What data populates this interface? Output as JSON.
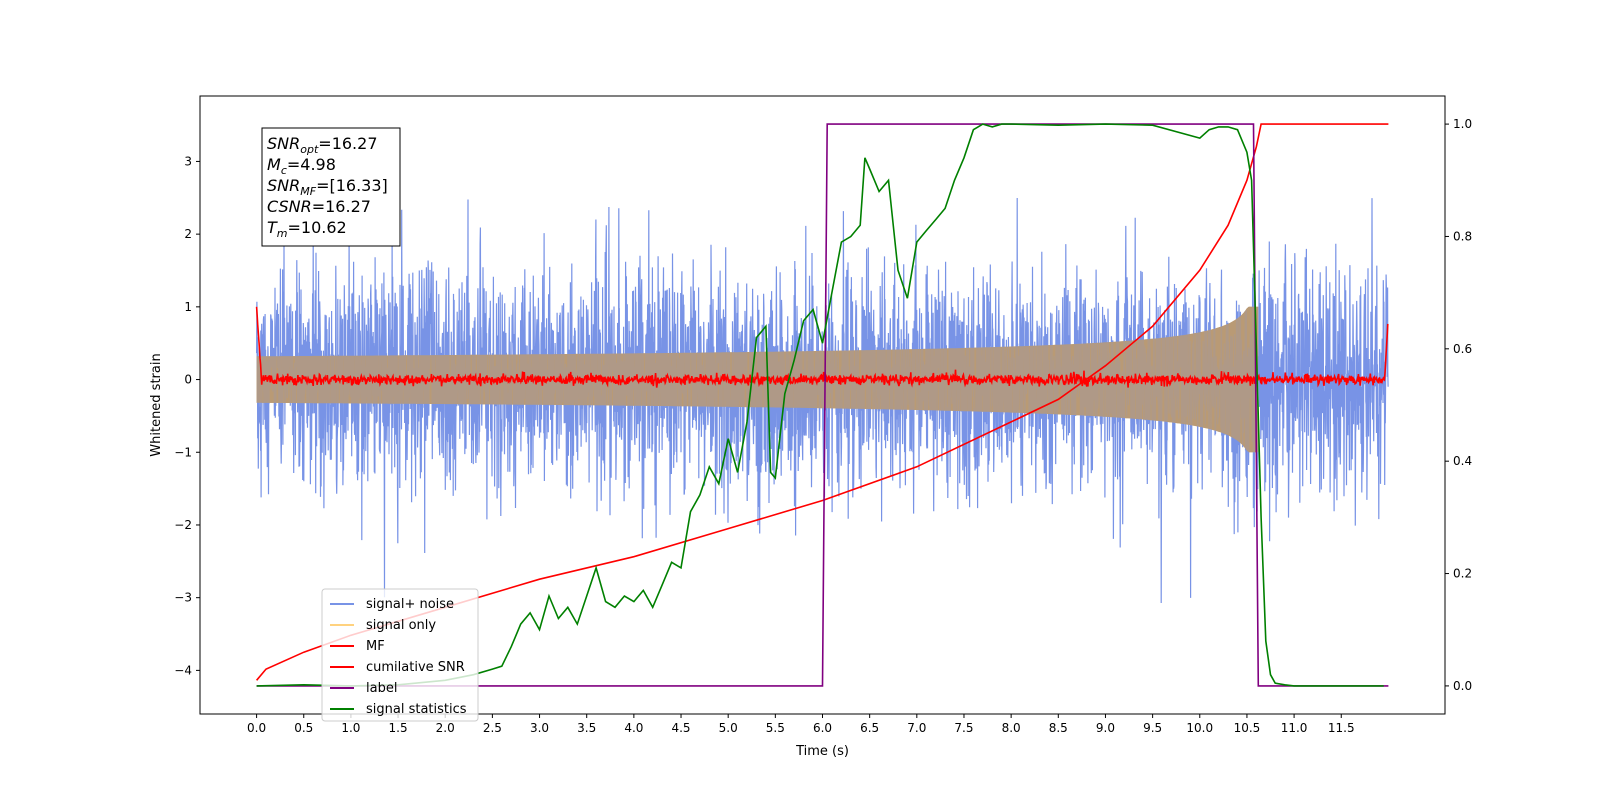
{
  "chart_data": {
    "type": "line",
    "xlabel": "Time (s)",
    "ylabel_left": "Whitened strain",
    "ylabel_right": "",
    "xlim": [
      -0.6,
      12.6
    ],
    "ylim_left": [
      -4.6,
      3.9
    ],
    "ylim_right": [
      -0.05,
      1.05
    ],
    "x_ticks": [
      0.0,
      0.5,
      1.0,
      1.5,
      2.0,
      2.5,
      3.0,
      3.5,
      4.0,
      4.5,
      5.0,
      5.5,
      6.0,
      6.5,
      7.0,
      7.5,
      8.0,
      8.5,
      9.0,
      9.5,
      10.0,
      10.5,
      11.0,
      11.5
    ],
    "x_tick_labels": [
      "0.0",
      "0.5",
      "1.0",
      "1.5",
      "2.0",
      "2.5",
      "3.0",
      "3.5",
      "4.0",
      "4.5",
      "5.0",
      "5.5",
      "6.0",
      "6.5",
      "7.0",
      "7.5",
      "8.0",
      "8.5",
      "9.0",
      "9.5",
      "10.0",
      "10.5",
      "11.0",
      "11.5"
    ],
    "y_ticks_left": [
      -4,
      -3,
      -2,
      -1,
      0,
      1,
      2,
      3
    ],
    "y_tick_labels_left": [
      "−4",
      "−3",
      "−2",
      "−1",
      "0",
      "1",
      "2",
      "3"
    ],
    "y_ticks_right": [
      0.0,
      0.2,
      0.4,
      0.6,
      0.8,
      1.0
    ],
    "y_tick_labels_right": [
      "0.0",
      "0.2",
      "0.4",
      "0.6",
      "0.8",
      "1.0"
    ],
    "grid": false,
    "legend_position": "bottom-left",
    "annotation": {
      "lines": [
        {
          "base": "SNR",
          "sub": "opt",
          "value": "=16.27"
        },
        {
          "base": "M",
          "sub": "c",
          "value": "=4.98"
        },
        {
          "base": "SNR",
          "sub": "MF",
          "value": "=[16.33]"
        },
        {
          "base": "CSNR",
          "sub": "",
          "value": "=16.27"
        },
        {
          "base": "T",
          "sub": "m",
          "value": "=10.62"
        }
      ]
    },
    "series": [
      {
        "name": "signal+ noise",
        "color": "#7893e6",
        "axis": "left",
        "kind": "noise",
        "t_start": 0.0,
        "t_end": 12.0,
        "typical_amplitude": 0.75,
        "peak_amplitude": 3.5
      },
      {
        "name": "signal only",
        "color": "#ffd27f",
        "axis": "left",
        "kind": "chirp",
        "t_start": 0.0,
        "t_end": 10.62,
        "amplitude_start": 0.03,
        "amplitude_end": 1.0
      },
      {
        "name": "MF",
        "color": "#ff0000",
        "axis": "left",
        "kind": "mf",
        "t_start": 0.0,
        "t_end": 12.0,
        "start_value": 1.0,
        "end_value": 0.9,
        "noise_amplitude": 0.06
      },
      {
        "name": "cumilative SNR",
        "color": "#ff0000",
        "axis": "right",
        "x": [
          0.0,
          0.1,
          0.5,
          1.0,
          2.0,
          3.0,
          4.0,
          5.0,
          6.0,
          7.0,
          8.0,
          8.5,
          9.0,
          9.5,
          10.0,
          10.3,
          10.5,
          10.6,
          10.65,
          12.0
        ],
        "values": [
          0.01,
          0.03,
          0.06,
          0.09,
          0.14,
          0.19,
          0.23,
          0.28,
          0.33,
          0.39,
          0.47,
          0.51,
          0.57,
          0.64,
          0.74,
          0.82,
          0.9,
          0.96,
          1.0,
          1.0
        ]
      },
      {
        "name": "label",
        "color": "#800080",
        "axis": "right",
        "x": [
          0.0,
          6.0,
          6.05,
          10.57,
          10.62,
          12.0
        ],
        "values": [
          0.0,
          0.0,
          1.0,
          1.0,
          0.0,
          0.0
        ]
      },
      {
        "name": "signal statistics",
        "color": "#008000",
        "axis": "right",
        "x": [
          0.0,
          0.5,
          1.0,
          1.5,
          2.0,
          2.3,
          2.5,
          2.6,
          2.7,
          2.8,
          2.9,
          3.0,
          3.1,
          3.2,
          3.3,
          3.4,
          3.5,
          3.6,
          3.7,
          3.8,
          3.9,
          4.0,
          4.1,
          4.2,
          4.3,
          4.4,
          4.5,
          4.6,
          4.7,
          4.8,
          4.9,
          5.0,
          5.1,
          5.2,
          5.3,
          5.4,
          5.45,
          5.5,
          5.6,
          5.7,
          5.8,
          5.9,
          6.0,
          6.1,
          6.2,
          6.3,
          6.4,
          6.45,
          6.5,
          6.6,
          6.7,
          6.8,
          6.9,
          7.0,
          7.1,
          7.2,
          7.3,
          7.4,
          7.5,
          7.6,
          7.7,
          7.8,
          7.9,
          8.0,
          8.5,
          9.0,
          9.5,
          10.0,
          10.1,
          10.2,
          10.3,
          10.4,
          10.5,
          10.55,
          10.6,
          10.65,
          10.7,
          10.75,
          10.8,
          10.9,
          11.0,
          11.5,
          11.95
        ],
        "values": [
          0.0,
          0.002,
          0.0,
          0.002,
          0.01,
          0.02,
          0.03,
          0.035,
          0.07,
          0.11,
          0.13,
          0.1,
          0.16,
          0.12,
          0.14,
          0.11,
          0.16,
          0.21,
          0.15,
          0.14,
          0.16,
          0.15,
          0.17,
          0.14,
          0.18,
          0.22,
          0.21,
          0.31,
          0.34,
          0.39,
          0.36,
          0.44,
          0.38,
          0.47,
          0.62,
          0.64,
          0.38,
          0.37,
          0.52,
          0.58,
          0.65,
          0.67,
          0.61,
          0.7,
          0.79,
          0.8,
          0.82,
          0.94,
          0.92,
          0.88,
          0.9,
          0.74,
          0.69,
          0.79,
          0.81,
          0.83,
          0.85,
          0.9,
          0.94,
          0.99,
          1.0,
          0.995,
          1.0,
          1.0,
          0.998,
          1.0,
          0.998,
          0.975,
          0.99,
          0.995,
          0.995,
          0.99,
          0.95,
          0.9,
          0.6,
          0.3,
          0.08,
          0.02,
          0.005,
          0.002,
          0.0,
          0.0,
          0.0
        ]
      }
    ]
  }
}
